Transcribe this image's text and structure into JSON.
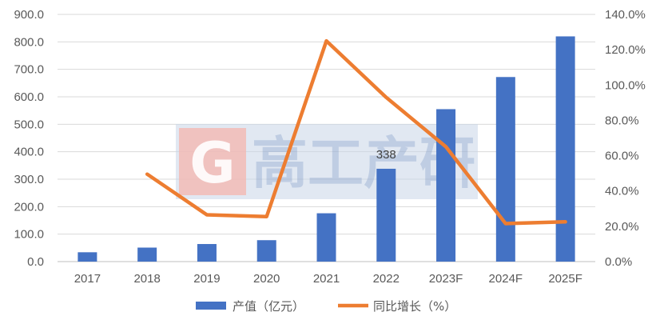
{
  "chart_data": {
    "type": "bar+line",
    "categories": [
      "2017",
      "2018",
      "2019",
      "2020",
      "2021",
      "2022",
      "2023F",
      "2024F",
      "2025F"
    ],
    "series": [
      {
        "name": "产值（亿元）",
        "type": "bar",
        "axis": "left",
        "color": "#4472c4",
        "values": [
          34,
          51,
          64,
          78,
          176,
          338,
          555,
          672,
          820
        ]
      },
      {
        "name": "同比增长（%）",
        "type": "line",
        "axis": "right",
        "color": "#ed7d31",
        "values": [
          null,
          49.5,
          26.5,
          25.5,
          125.0,
          93.0,
          65.0,
          21.5,
          22.5
        ]
      }
    ],
    "data_labels": [
      {
        "series": 0,
        "index": 5,
        "text": "338"
      }
    ],
    "y_left": {
      "ylim": [
        0,
        900
      ],
      "ticks": [
        "0.0",
        "100.0",
        "200.0",
        "300.0",
        "400.0",
        "500.0",
        "600.0",
        "700.0",
        "800.0",
        "900.0"
      ]
    },
    "y_right": {
      "ylim": [
        0,
        140
      ],
      "ticks": [
        "0.0%",
        "20.0%",
        "40.0%",
        "60.0%",
        "80.0%",
        "100.0%",
        "120.0%",
        "140.0%"
      ]
    },
    "grid": true,
    "legend_position": "bottom"
  },
  "watermark": {
    "text": "高工产研",
    "logo_letter": "G"
  }
}
